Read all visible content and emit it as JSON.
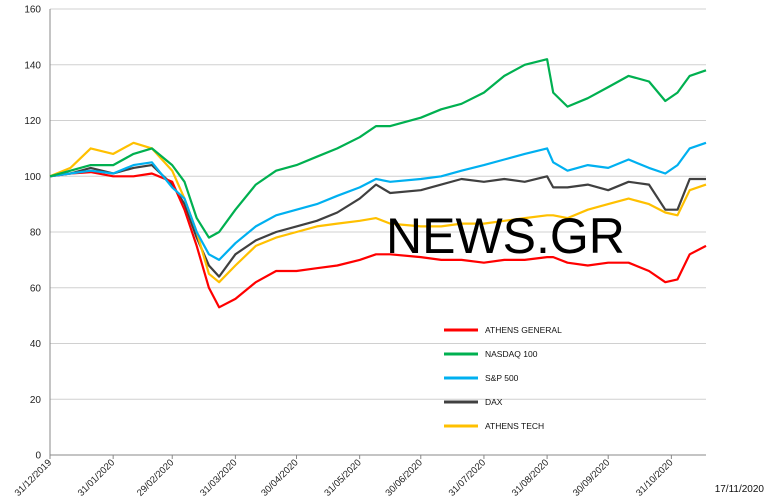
{
  "watermark": "NEWS.GR",
  "footer_date": "17/11/2020",
  "chart_data": {
    "type": "line",
    "ylim": [
      0,
      160
    ],
    "yticks": [
      0,
      20,
      40,
      60,
      80,
      100,
      120,
      140,
      160
    ],
    "grid": "horizontal",
    "legend_position": "lower-right",
    "x_start": "2019-12-31",
    "x_end": "2020-11-17",
    "x_tick_labels": [
      "31/12/2019",
      "31/01/2020",
      "29/02/2020",
      "31/03/2020",
      "30/04/2020",
      "31/05/2020",
      "30/06/2020",
      "31/07/2020",
      "31/08/2020",
      "30/09/2020",
      "31/10/2020"
    ],
    "x": [
      "2019-12-31",
      "2020-01-10",
      "2020-01-20",
      "2020-01-31",
      "2020-02-10",
      "2020-02-19",
      "2020-02-29",
      "2020-03-06",
      "2020-03-12",
      "2020-03-18",
      "2020-03-23",
      "2020-03-31",
      "2020-04-10",
      "2020-04-20",
      "2020-04-30",
      "2020-05-10",
      "2020-05-20",
      "2020-05-31",
      "2020-06-08",
      "2020-06-15",
      "2020-06-30",
      "2020-07-10",
      "2020-07-20",
      "2020-07-31",
      "2020-08-10",
      "2020-08-20",
      "2020-08-31",
      "2020-09-03",
      "2020-09-10",
      "2020-09-20",
      "2020-09-30",
      "2020-10-10",
      "2020-10-20",
      "2020-10-28",
      "2020-11-03",
      "2020-11-09",
      "2020-11-17"
    ],
    "series": [
      {
        "name": "ATHENS GENERAL",
        "color": "#ff0000",
        "values": [
          100,
          101,
          101.5,
          100,
          100,
          101,
          98,
          88,
          75,
          60,
          53,
          56,
          62,
          66,
          66,
          67,
          68,
          70,
          72,
          72,
          71,
          70,
          70,
          69,
          70,
          70,
          71,
          71,
          69,
          68,
          69,
          69,
          66,
          62,
          63,
          72,
          75
        ]
      },
      {
        "name": "NASDAQ 100",
        "color": "#00b050",
        "values": [
          100,
          102,
          104,
          104,
          108,
          110,
          104,
          98,
          85,
          78,
          80,
          88,
          97,
          102,
          104,
          107,
          110,
          114,
          118,
          118,
          121,
          124,
          126,
          130,
          136,
          140,
          142,
          130,
          125,
          128,
          132,
          136,
          134,
          127,
          130,
          136,
          138
        ]
      },
      {
        "name": "S&P 500",
        "color": "#00b0f0",
        "values": [
          100,
          101,
          102,
          101,
          104,
          105,
          96,
          92,
          80,
          72,
          70,
          76,
          82,
          86,
          88,
          90,
          93,
          96,
          99,
          98,
          99,
          100,
          102,
          104,
          106,
          108,
          110,
          105,
          102,
          104,
          103,
          106,
          103,
          101,
          104,
          110,
          112
        ]
      },
      {
        "name": "DAX",
        "color": "#404040",
        "values": [
          100,
          101,
          103,
          101,
          103,
          104,
          97,
          90,
          78,
          68,
          64,
          72,
          77,
          80,
          82,
          84,
          87,
          92,
          97,
          94,
          95,
          97,
          99,
          98,
          99,
          98,
          100,
          96,
          96,
          97,
          95,
          98,
          97,
          88,
          88,
          99,
          99
        ]
      },
      {
        "name": "ATHENS TECH",
        "color": "#ffc000",
        "values": [
          100,
          103,
          110,
          108,
          112,
          110,
          102,
          92,
          80,
          65,
          62,
          68,
          75,
          78,
          80,
          82,
          83,
          84,
          85,
          83,
          82,
          82,
          83,
          83,
          84,
          85,
          86,
          86,
          85,
          88,
          90,
          92,
          90,
          87,
          86,
          95,
          97
        ]
      }
    ]
  }
}
